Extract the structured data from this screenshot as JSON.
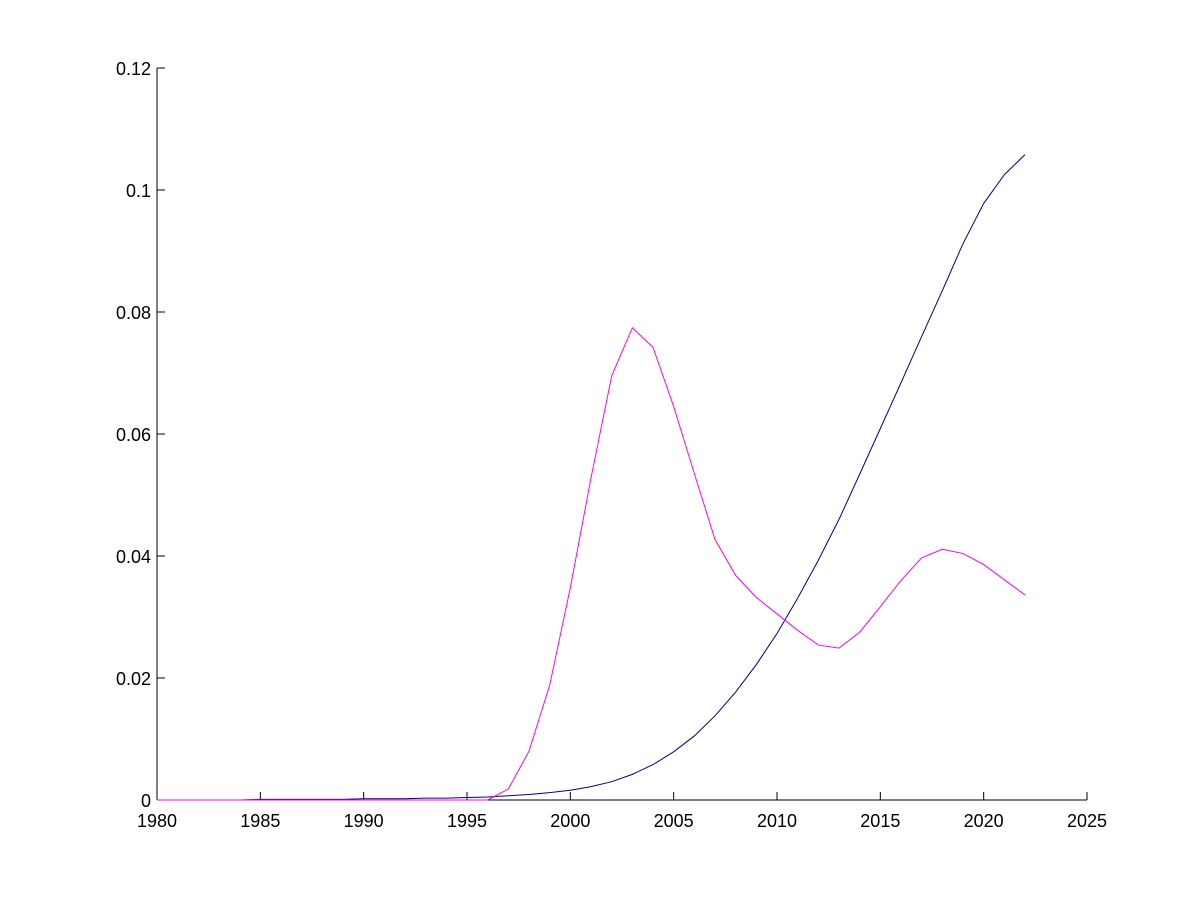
{
  "chart_data": {
    "type": "line",
    "title": "",
    "xlabel": "",
    "ylabel": "",
    "xlim": [
      1980,
      2025
    ],
    "ylim": [
      0,
      0.12
    ],
    "x_ticks": [
      1980,
      1985,
      1990,
      1995,
      2000,
      2005,
      2010,
      2015,
      2020,
      2025
    ],
    "x_tick_labels": [
      "1980",
      "1985",
      "1990",
      "1995",
      "2000",
      "2005",
      "2010",
      "2015",
      "2020",
      "2025"
    ],
    "y_ticks": [
      0,
      0.02,
      0.04,
      0.06,
      0.08,
      0.1,
      0.12
    ],
    "y_tick_labels": [
      "0",
      "0.02",
      "0.04",
      "0.06",
      "0.08",
      "0.1",
      "0.12"
    ],
    "grid": false,
    "legend": "none",
    "x": [
      1980,
      1981,
      1982,
      1983,
      1984,
      1985,
      1986,
      1987,
      1988,
      1989,
      1990,
      1991,
      1992,
      1993,
      1994,
      1995,
      1996,
      1997,
      1998,
      1999,
      2000,
      2001,
      2002,
      2003,
      2004,
      2005,
      2006,
      2007,
      2008,
      2009,
      2010,
      2011,
      2012,
      2013,
      2014,
      2015,
      2016,
      2017,
      2018,
      2019,
      2020,
      2021,
      2022
    ],
    "series": [
      {
        "color": "#00008b",
        "values": [
          0.0,
          0.0,
          0.0,
          0.0,
          0.0,
          0.0001,
          0.0001,
          0.0001,
          0.0001,
          0.0001,
          0.0002,
          0.0002,
          0.0002,
          0.0003,
          0.0003,
          0.0004,
          0.0005,
          0.0007,
          0.0009,
          0.0012,
          0.0016,
          0.0022,
          0.003,
          0.0042,
          0.0058,
          0.0079,
          0.0105,
          0.0138,
          0.0177,
          0.0222,
          0.0273,
          0.0331,
          0.0393,
          0.046,
          0.0534,
          0.0609,
          0.0684,
          0.076,
          0.0835,
          0.0912,
          0.0978,
          0.1025,
          0.1058
        ]
      },
      {
        "color": "#ff00ff",
        "values": [
          0.0,
          0.0,
          0.0,
          0.0,
          0.0,
          0.0,
          0.0,
          0.0,
          0.0,
          0.0,
          0.0,
          0.0,
          0.0,
          0.0,
          0.0,
          0.0,
          0.0,
          0.0018,
          0.008,
          0.0188,
          0.0348,
          0.0528,
          0.0695,
          0.0774,
          0.0742,
          0.0645,
          0.0535,
          0.0427,
          0.0368,
          0.0332,
          0.0305,
          0.0278,
          0.0254,
          0.0249,
          0.0275,
          0.0317,
          0.036,
          0.0397,
          0.0411,
          0.0404,
          0.0386,
          0.0361,
          0.0336
        ]
      }
    ]
  }
}
